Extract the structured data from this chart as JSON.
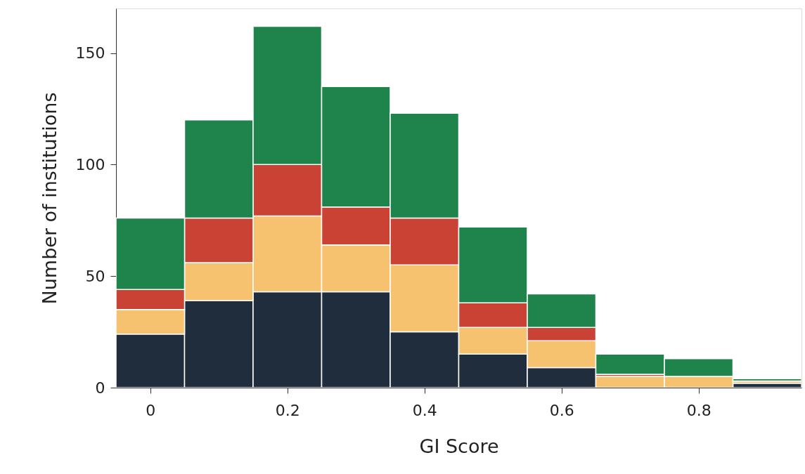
{
  "chart_data": {
    "type": "bar",
    "xlabel": "GI Score",
    "ylabel": "Number of institutions",
    "x": [
      0,
      0.1,
      0.2,
      0.3,
      0.4,
      0.5,
      0.6,
      0.7,
      0.8,
      0.9
    ],
    "stacked": true,
    "series": [
      {
        "color": "#1f2d3d",
        "values": [
          24,
          39,
          43,
          43,
          25,
          15,
          9,
          0,
          0,
          2
        ]
      },
      {
        "color": "#f6c26f",
        "values": [
          11,
          17,
          34,
          21,
          30,
          12,
          12,
          5,
          5,
          1
        ]
      },
      {
        "color": "#c94233",
        "values": [
          9,
          20,
          23,
          17,
          21,
          11,
          6,
          1,
          0,
          0
        ]
      },
      {
        "color": "#1f844b",
        "values": [
          32,
          44,
          62,
          54,
          47,
          34,
          15,
          9,
          8,
          1
        ]
      }
    ],
    "xlim": [
      -0.05,
      0.95
    ],
    "xticks": [
      {
        "value": 0,
        "label": "0"
      },
      0.2,
      0.4,
      0.6,
      0.8
    ],
    "ylim": [
      0,
      170
    ],
    "yticks": [
      0,
      50,
      100,
      150
    ],
    "grid": false
  }
}
